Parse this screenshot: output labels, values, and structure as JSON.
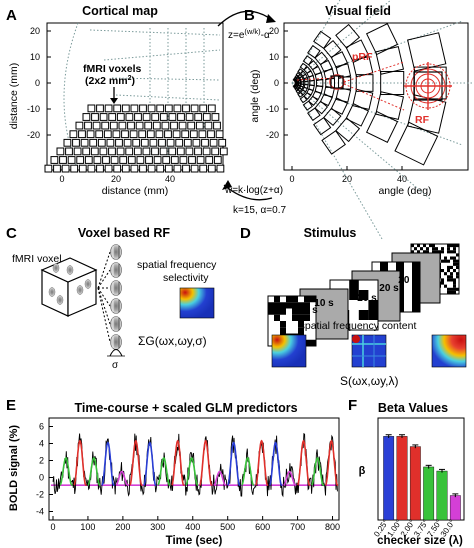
{
  "panels": {
    "A": {
      "letter": "A",
      "title": "Cortical map",
      "ylabel": "distance (mm)",
      "xlabel": "distance (mm)",
      "yticks": [
        "20",
        "10",
        "0",
        "-10",
        "-20"
      ],
      "xticks": [
        "0",
        "20",
        "40"
      ],
      "annotation_line1": "fMRI voxels",
      "annotation_line2": "(2x2 mm",
      "annotation_sup": "2",
      "annotation_close": ")"
    },
    "B": {
      "letter": "B",
      "title": "Visual field",
      "ylabel": "angle (deg)",
      "xlabel": "angle (deg)",
      "yticks": [
        "20",
        "10",
        "0",
        "-10",
        "-20"
      ],
      "xticks": [
        "0",
        "20",
        "40"
      ],
      "prf_label": "pRF",
      "rf_label": "RF"
    },
    "mapping": {
      "forward": "z=e",
      "forward_exp": "(w/k)",
      "forward_tail": "-α",
      "inverse": "w=k·log(z+α)",
      "params": "k=15, α=0.7"
    },
    "C": {
      "letter": "C",
      "title": "Voxel based RF",
      "voxel_label": "fMRI voxel",
      "sf_line1": "spatial frequency",
      "sf_line2": "selectivity",
      "formula": "ΣG(ωx,ωy,σ)",
      "sigma": "σ"
    },
    "D": {
      "letter": "D",
      "title": "Stimulus",
      "durations": [
        "10 s",
        "10 s",
        "20 s",
        "20 s",
        "20 s"
      ],
      "sf_content": "spatial frequency content",
      "formula": "S(ωx,ωy,λ)"
    },
    "E": {
      "letter": "E",
      "title": "Time-course + scaled GLM predictors",
      "ylabel": "BOLD signal (%)",
      "xlabel": "Time (sec)",
      "yticks": [
        "6",
        "4",
        "2",
        "0",
        "-2",
        "-4"
      ],
      "xticks": [
        "0",
        "100",
        "200",
        "300",
        "400",
        "500",
        "600",
        "700",
        "800"
      ]
    },
    "F": {
      "letter": "F",
      "title": "Beta Values",
      "ylabel": "β",
      "xlabel": "checker size (λ)"
    }
  },
  "colors": {
    "red": "#e0302b",
    "blue": "#2a3fd6",
    "green": "#38c23a",
    "magenta": "#d43fd6",
    "black": "#000000"
  },
  "chart_data": [
    {
      "type": "bar",
      "title": "Beta Values",
      "ylabel": "β",
      "xlabel": "checker size (λ)",
      "categories": [
        "0.25°",
        "1.00°",
        "2.00°",
        "3.75°",
        "7.50°",
        "30.0°"
      ],
      "values": [
        4.1,
        4.1,
        3.6,
        2.6,
        2.4,
        1.2
      ],
      "errors": [
        0.08,
        0.08,
        0.08,
        0.08,
        0.08,
        0.08
      ],
      "colors": [
        "#2a3fd6",
        "#e0302b",
        "#e0302b",
        "#38c23a",
        "#38c23a",
        "#d43fd6"
      ],
      "ylim": [
        0,
        5
      ]
    }
  ]
}
